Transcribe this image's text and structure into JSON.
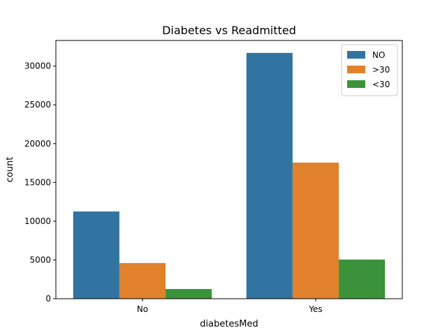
{
  "chart_data": {
    "type": "bar",
    "title": "Diabetes vs Readmitted",
    "xlabel": "diabetesMed",
    "ylabel": "count",
    "categories": [
      "No",
      "Yes"
    ],
    "series": [
      {
        "name": "NO",
        "color": "#3274a1",
        "values": [
          11250,
          31700
        ]
      },
      {
        "name": ">30",
        "color": "#e1812c",
        "values": [
          4600,
          17550
        ]
      },
      {
        "name": "<30",
        "color": "#3a923a",
        "values": [
          1250,
          5050
        ]
      }
    ],
    "ylim": [
      0,
      33300
    ],
    "yticks": [
      0,
      5000,
      10000,
      15000,
      20000,
      25000,
      30000
    ],
    "ytick_labels": [
      "0",
      "5000",
      "10000",
      "15000",
      "20000",
      "25000",
      "30000"
    ],
    "grid": false,
    "legend_position": "top-right"
  }
}
